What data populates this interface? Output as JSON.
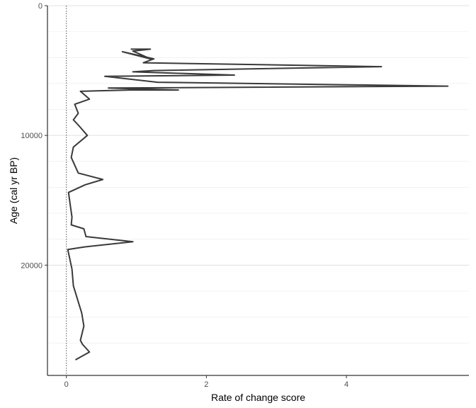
{
  "chart_data": {
    "type": "line",
    "xlabel": "Rate of change score",
    "ylabel": "Age (cal yr BP)",
    "xlim": [
      -0.27,
      5.75
    ],
    "ylim": [
      0,
      28500
    ],
    "y_reversed": true,
    "x_ticks": [
      {
        "value": 0,
        "label": "0"
      },
      {
        "value": 2,
        "label": "2"
      },
      {
        "value": 4,
        "label": "4"
      }
    ],
    "y_ticks": [
      {
        "value": 0,
        "label": "0"
      },
      {
        "value": 10000,
        "label": "10000"
      },
      {
        "value": 20000,
        "label": "20000"
      }
    ],
    "y_minor_grid": [
      2000,
      4000,
      6000,
      8000,
      12000,
      14000,
      16000,
      18000,
      22000,
      24000,
      26000
    ],
    "grid": "horizontal",
    "reference_line_x": 0,
    "line_color": "#3a3a3a",
    "series": [
      {
        "x": [
          0.92,
          1.2,
          0.95,
          1.2,
          0.8,
          1.25,
          1.1,
          4.5,
          1.25,
          0.95,
          2.4,
          0.55,
          1.3,
          5.45,
          0.6,
          1.6,
          0.9,
          0.2,
          0.33,
          0.12,
          0.17,
          0.1,
          0.17,
          0.3,
          0.1,
          0.07,
          0.17,
          0.52,
          0.27,
          0.03,
          0.08,
          0.07,
          0.25,
          0.28,
          0.95,
          0.25,
          0.02,
          0.08,
          0.1,
          0.22,
          0.25,
          0.2,
          0.23,
          0.33,
          0.13
        ],
        "y": [
          3350,
          3350,
          3500,
          4100,
          3550,
          4100,
          4400,
          4700,
          5000,
          5100,
          5350,
          5450,
          5900,
          6200,
          6350,
          6500,
          6500,
          6600,
          7200,
          7600,
          8300,
          8800,
          9200,
          10000,
          10900,
          11700,
          12900,
          13400,
          13800,
          14400,
          16300,
          16900,
          17200,
          17800,
          18200,
          18600,
          18800,
          20300,
          21600,
          23700,
          24700,
          25800,
          26100,
          26700,
          27300
        ]
      }
    ]
  }
}
